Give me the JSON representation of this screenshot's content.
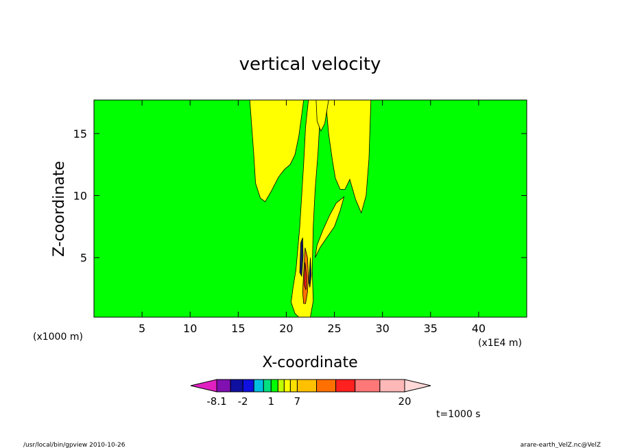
{
  "chart_data": {
    "type": "heatmap",
    "title": "vertical velocity",
    "xlabel": "X-coordinate",
    "ylabel": "Z-coordinate",
    "x_unit_left": "(x1000 m)",
    "x_unit_right": "(x1E4 m)",
    "xlim": [
      0,
      45
    ],
    "ylim": [
      0.2,
      17.7
    ],
    "x_ticks": [
      {
        "value": 5,
        "label": "5"
      },
      {
        "value": 10,
        "label": "10"
      },
      {
        "value": 15,
        "label": "15"
      },
      {
        "value": 20,
        "label": "20"
      },
      {
        "value": 25,
        "label": "25"
      },
      {
        "value": 30,
        "label": "30"
      },
      {
        "value": 35,
        "label": "35"
      },
      {
        "value": 40,
        "label": "40"
      }
    ],
    "y_ticks": [
      {
        "value": 5,
        "label": "5"
      },
      {
        "value": 10,
        "label": "10"
      },
      {
        "value": 15,
        "label": "15"
      }
    ],
    "background_color": "#00ff00",
    "regions": [
      {
        "level": "yellow",
        "color": "#ffff00",
        "polygon": [
          [
            16.2,
            17.7
          ],
          [
            16.6,
            13.5
          ],
          [
            16.8,
            11
          ],
          [
            17.3,
            9.8
          ],
          [
            17.8,
            9.5
          ],
          [
            18.4,
            10.3
          ],
          [
            19.2,
            11.5
          ],
          [
            19.8,
            12.1
          ],
          [
            20.4,
            12.5
          ],
          [
            20.9,
            13.3
          ],
          [
            21.3,
            14.8
          ],
          [
            21.6,
            16.5
          ],
          [
            21.8,
            17.7
          ]
        ]
      },
      {
        "level": "yellow",
        "color": "#ffff00",
        "polygon": [
          [
            21.0,
            4.0
          ],
          [
            20.7,
            2.6
          ],
          [
            20.5,
            1.4
          ],
          [
            20.9,
            0.5
          ],
          [
            21.3,
            0.2
          ],
          [
            22.5,
            0.2
          ],
          [
            22.8,
            1.5
          ],
          [
            22.7,
            4.0
          ],
          [
            22.8,
            7.5
          ],
          [
            23.0,
            10.5
          ],
          [
            23.3,
            13.5
          ],
          [
            23.5,
            16.2
          ],
          [
            23.6,
            17.7
          ],
          [
            22.3,
            17.7
          ],
          [
            22.0,
            15.5
          ],
          [
            21.8,
            12.5
          ],
          [
            21.6,
            10
          ],
          [
            21.4,
            7.5
          ]
        ]
      },
      {
        "level": "yellow",
        "color": "#ffff00",
        "polygon": [
          [
            24.1,
            17.7
          ],
          [
            24.4,
            15
          ],
          [
            24.8,
            12.8
          ],
          [
            25.1,
            11.4
          ],
          [
            25.6,
            10.5
          ],
          [
            26.1,
            10.5
          ],
          [
            26.6,
            11.3
          ],
          [
            27.2,
            9.7
          ],
          [
            27.8,
            8.6
          ],
          [
            28.3,
            10
          ],
          [
            28.6,
            13
          ],
          [
            28.8,
            17.7
          ]
        ]
      },
      {
        "level": "yellow",
        "color": "#ffff00",
        "polygon": [
          [
            24.4,
            17.7
          ],
          [
            24.0,
            15.8
          ],
          [
            23.6,
            15.2
          ],
          [
            23.2,
            16.0
          ],
          [
            23.1,
            17.7
          ]
        ]
      },
      {
        "level": "yellow",
        "color": "#ffff00",
        "polygon": [
          [
            23.0,
            5.0
          ],
          [
            23.5,
            5.8
          ],
          [
            24.2,
            6.6
          ],
          [
            25.0,
            7.5
          ],
          [
            25.6,
            8.8
          ],
          [
            26.0,
            9.9
          ],
          [
            25.2,
            9.4
          ],
          [
            24.5,
            8.4
          ],
          [
            23.8,
            7.2
          ],
          [
            23.2,
            6.0
          ]
        ]
      },
      {
        "level": "orange",
        "color": "#ff7000",
        "polygon": [
          [
            21.7,
            2.2
          ],
          [
            21.8,
            3.8
          ],
          [
            21.95,
            5.8
          ],
          [
            22.2,
            5.0
          ],
          [
            22.3,
            3.5
          ],
          [
            22.2,
            2.2
          ],
          [
            22.0,
            1.3
          ],
          [
            21.8,
            1.3
          ]
        ]
      },
      {
        "level": "red",
        "color": "#ff2020",
        "polygon": [
          [
            21.85,
            2.8
          ],
          [
            21.95,
            4.6
          ],
          [
            22.1,
            3.5
          ],
          [
            22.05,
            2.4
          ]
        ]
      },
      {
        "level": "negative",
        "color": "#1a1a66",
        "polygon": [
          [
            21.4,
            3.8
          ],
          [
            21.5,
            6.2
          ],
          [
            21.7,
            6.6
          ],
          [
            21.75,
            5.2
          ],
          [
            21.6,
            3.5
          ]
        ]
      },
      {
        "level": "negative",
        "color": "#1a1a66",
        "polygon": [
          [
            22.35,
            3.0
          ],
          [
            22.5,
            5.0
          ],
          [
            22.6,
            3.6
          ],
          [
            22.45,
            2.6
          ]
        ]
      }
    ],
    "colorbar": {
      "levels": [
        "-8.1",
        "-2",
        "1",
        "7",
        "20"
      ],
      "colors": [
        "#e020c0",
        "#8010b0",
        "#1010a0",
        "#1010e0",
        "#00c0e0",
        "#00e080",
        "#00ff00",
        "#c0ff00",
        "#ffff00",
        "#ffe000",
        "#ffc000",
        "#ff7000",
        "#ff2020",
        "#ff7878",
        "#ffb8b8",
        "#ffd8d8"
      ]
    },
    "time_label": "t=1000 s"
  },
  "footer": {
    "left": "/usr/local/bin/gpview 2010-10-26",
    "right": "arare-earth_VelZ.nc@VelZ"
  }
}
